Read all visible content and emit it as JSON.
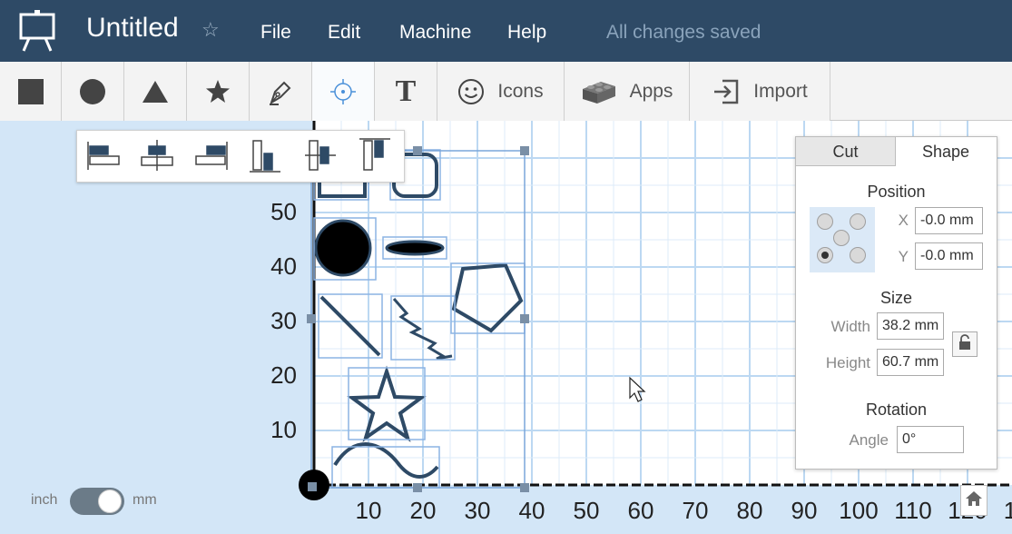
{
  "app": {
    "document_title": "Untitled",
    "favorite_icon": "star-outline-icon",
    "menu": [
      "File",
      "Edit",
      "Machine",
      "Help"
    ],
    "save_status": "All changes saved",
    "colors": {
      "topbar": "#2e4a66",
      "canvas_background": "#d3e6f7",
      "material_area": "#ffffff",
      "grid_lines": "#bcd8f2",
      "shape_stroke": "#2e4a66",
      "selection": "#5b8fd4"
    }
  },
  "toolbar": {
    "tools": [
      {
        "icon": "square-icon"
      },
      {
        "icon": "circle-icon"
      },
      {
        "icon": "triangle-icon"
      },
      {
        "icon": "star-icon"
      },
      {
        "icon": "pen-icon"
      },
      {
        "icon": "crosshair-icon"
      },
      {
        "icon": "text-icon",
        "glyph": "T"
      },
      {
        "icon": "smiley-icon",
        "label": "Icons"
      },
      {
        "icon": "lego-brick-icon",
        "label": "Apps"
      },
      {
        "icon": "import-icon",
        "label": "Import"
      }
    ]
  },
  "align_toolbar": {
    "buttons": [
      "align-left-icon",
      "align-center-icon",
      "align-right-icon",
      "align-bottom-icon",
      "align-middle-icon",
      "align-top-icon"
    ]
  },
  "canvas": {
    "y_ticks": [
      "50",
      "40",
      "30",
      "20",
      "10"
    ],
    "x_ticks": [
      "10",
      "20",
      "30",
      "40",
      "50",
      "60",
      "70",
      "80",
      "90",
      "100",
      "110",
      "120",
      "1"
    ]
  },
  "panel": {
    "tabs": [
      "Cut",
      "Shape"
    ],
    "active_tab": "Shape",
    "position": {
      "title": "Position",
      "x_label": "X",
      "x_value": "-0.0 mm",
      "y_label": "Y",
      "y_value": "-0.0 mm",
      "selected_anchor": "bottom-left"
    },
    "size": {
      "title": "Size",
      "width_label": "Width",
      "width_value": "38.2 mm",
      "height_label": "Height",
      "height_value": "60.7 mm",
      "lock_icon": "unlock-icon"
    },
    "rotation": {
      "title": "Rotation",
      "angle_label": "Angle",
      "angle_value": "0°"
    }
  },
  "units": {
    "left_label": "inch",
    "right_label": "mm",
    "selected": "mm"
  }
}
